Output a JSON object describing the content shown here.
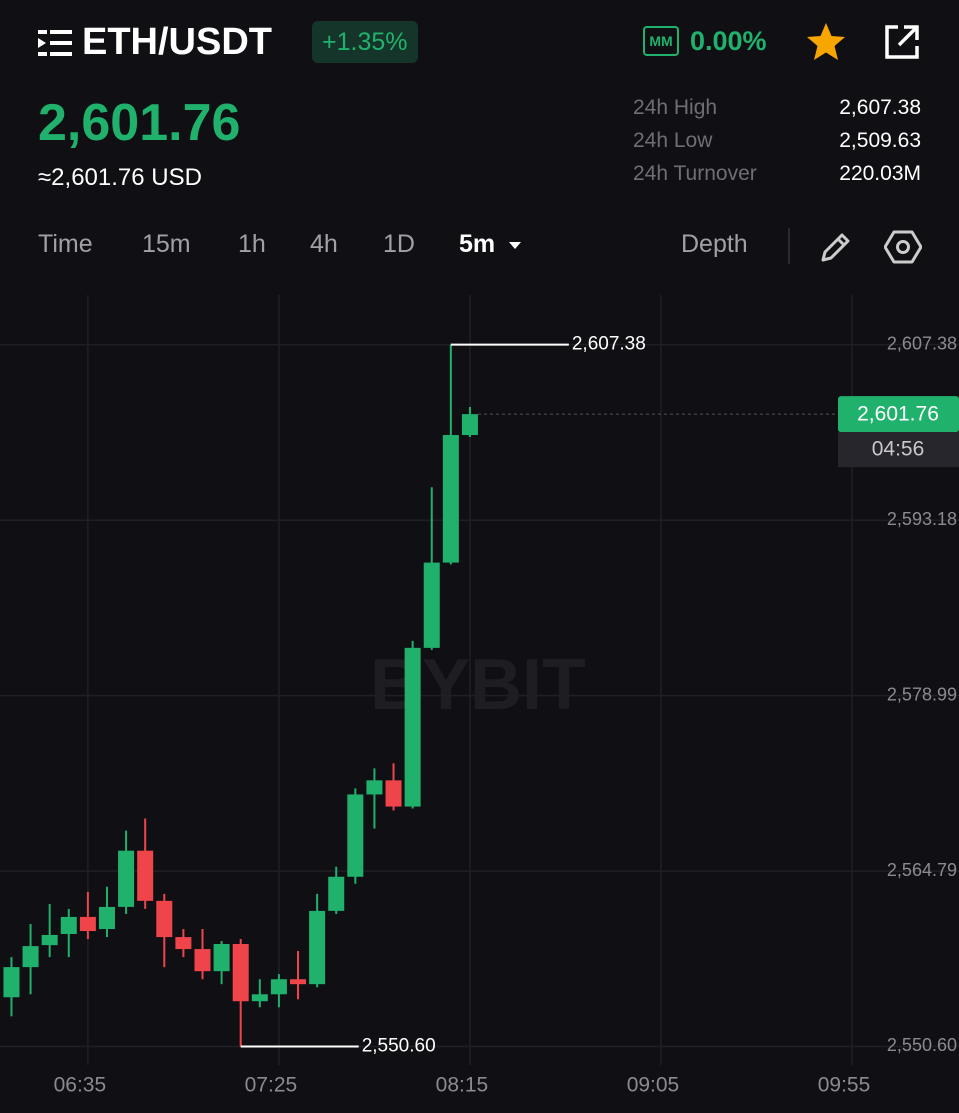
{
  "header": {
    "pair": "ETH/USDT",
    "change": "+1.35%",
    "mm_badge": "MM",
    "mm_value": "0.00%",
    "price": "2,601.76",
    "usd_price": "≈2,601.76 USD"
  },
  "stats": [
    {
      "label": "24h High",
      "value": "2,607.38"
    },
    {
      "label": "24h Low",
      "value": "2,509.63"
    },
    {
      "label": "24h Turnover",
      "value": "220.03M"
    }
  ],
  "tabs": [
    "Time",
    "15m",
    "1h",
    "4h",
    "1D",
    "5m",
    "Depth"
  ],
  "chart_data": {
    "type": "candlestick",
    "watermark": "BYBIT",
    "x": [
      "06:15",
      "06:20",
      "06:25",
      "06:30",
      "06:35",
      "06:40",
      "06:45",
      "06:50",
      "06:55",
      "07:00",
      "07:05",
      "07:10",
      "07:15",
      "07:20",
      "07:25",
      "07:30",
      "07:35",
      "07:40",
      "07:45",
      "07:50",
      "07:55",
      "08:00",
      "08:05",
      "08:10",
      "08:15"
    ],
    "open": [
      2554.58,
      2557.02,
      2558.8,
      2559.7,
      2561.08,
      2560.1,
      2561.89,
      2566.44,
      2562.38,
      2559.45,
      2558.48,
      2556.69,
      2558.89,
      2554.26,
      2554.82,
      2556.04,
      2555.64,
      2561.57,
      2564.33,
      2570.99,
      2572.13,
      2570.01,
      2582.85,
      2589.75,
      2600.07
    ],
    "high": [
      2557.83,
      2560.51,
      2562.13,
      2561.73,
      2563.11,
      2563.52,
      2568.06,
      2569.04,
      2562.95,
      2560.1,
      2560.1,
      2559.13,
      2559.29,
      2556.04,
      2556.45,
      2558.32,
      2562.95,
      2565.14,
      2571.48,
      2573.1,
      2573.51,
      2583.42,
      2595.85,
      2607.38,
      2602.34
    ],
    "low": [
      2553.04,
      2554.82,
      2557.83,
      2557.83,
      2559.29,
      2559.45,
      2561.32,
      2561.73,
      2557.02,
      2557.83,
      2556.04,
      2555.64,
      2550.6,
      2553.77,
      2553.77,
      2554.42,
      2555.39,
      2561.32,
      2563.76,
      2568.23,
      2569.69,
      2569.85,
      2582.69,
      2589.59,
      2599.91
    ],
    "close": [
      2557.02,
      2558.72,
      2559.62,
      2561.08,
      2559.94,
      2561.89,
      2566.44,
      2562.38,
      2559.45,
      2558.48,
      2556.69,
      2558.89,
      2554.26,
      2554.82,
      2556.04,
      2555.64,
      2561.57,
      2564.33,
      2570.99,
      2572.13,
      2570.01,
      2582.85,
      2589.75,
      2600.07,
      2601.76
    ],
    "up_color": "#20b26c",
    "down_color": "#ef454a",
    "xlim": [
      "06:12",
      "10:23"
    ],
    "xticks": [
      "06:35",
      "07:25",
      "08:15",
      "09:05",
      "09:55"
    ],
    "ylim": [
      2549.1,
      2611.4
    ],
    "yticks": [
      {
        "value": 2550.6,
        "label": "2,550.60"
      },
      {
        "value": 2564.79,
        "label": "2,564.79"
      },
      {
        "value": 2578.99,
        "label": "2,578.99"
      },
      {
        "value": 2593.18,
        "label": "2,593.18"
      },
      {
        "value": 2607.38,
        "label": "2,607.38"
      }
    ],
    "grid": true,
    "annotations": [
      {
        "label": "2,607.38",
        "value": 2607.38,
        "x": "08:10"
      },
      {
        "label": "2,550.60",
        "value": 2550.6,
        "x": "07:15"
      }
    ],
    "last_price": {
      "value": 2601.76,
      "label": "2,601.76",
      "x": "08:15"
    },
    "countdown": "04:56"
  }
}
